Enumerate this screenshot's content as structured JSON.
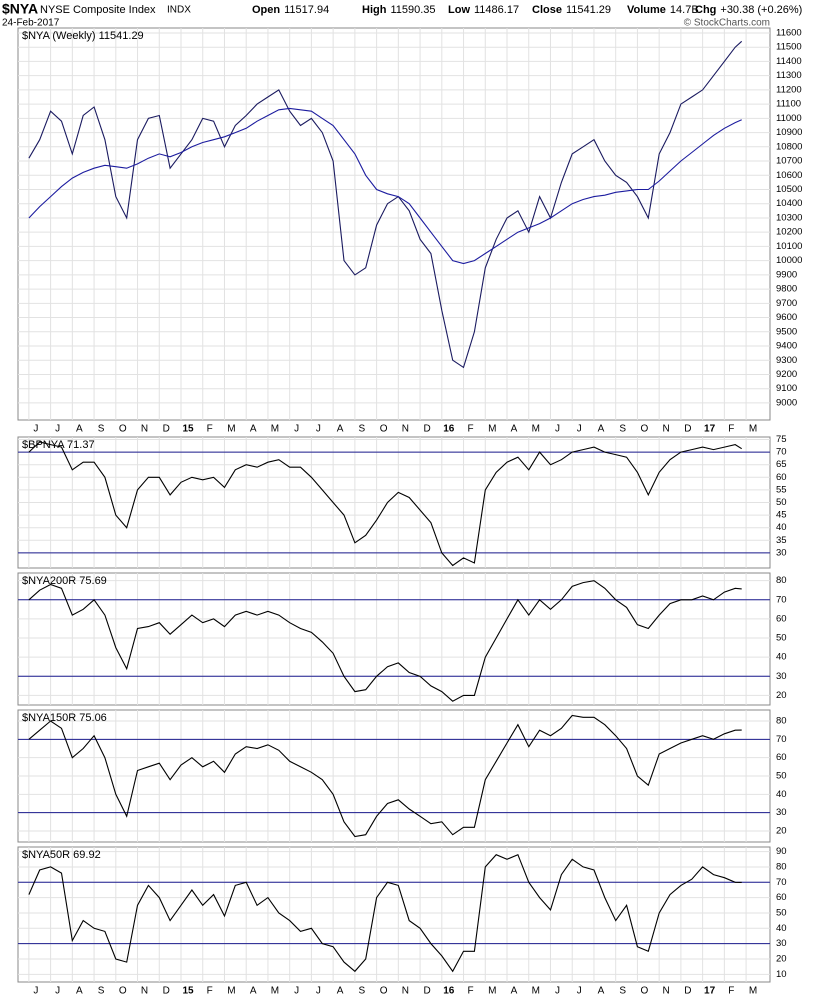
{
  "header": {
    "symbol": "$NYA",
    "name": "NYSE Composite Index",
    "exchange": "INDX",
    "date": "24-Feb-2017",
    "stats": [
      {
        "label": "Open",
        "value": "11517.94"
      },
      {
        "label": "High",
        "value": "11590.35"
      },
      {
        "label": "Low",
        "value": "11486.17"
      },
      {
        "label": "Close",
        "value": "11541.29"
      },
      {
        "label": "Volume",
        "value": "14.7B"
      },
      {
        "label": "Chg",
        "value": "+30.38 (+0.26%)"
      }
    ],
    "credit": "© StockCharts.com"
  },
  "chart_data": [
    {
      "type": "line",
      "label": "$NYA (Weekly) 11541.29",
      "grid": true,
      "x": [
        0,
        0.5,
        1,
        1.5,
        2,
        2.5,
        3,
        3.5,
        4,
        4.5,
        5,
        5.5,
        6,
        6.5,
        7,
        7.5,
        8,
        8.5,
        9,
        9.5,
        10,
        10.5,
        11,
        11.5,
        12,
        12.5,
        13,
        13.5,
        14,
        14.5,
        15,
        15.5,
        16,
        16.5,
        17,
        17.5,
        18,
        18.5,
        19,
        19.5,
        20,
        20.5,
        21,
        21.5,
        22,
        22.5,
        23,
        23.5,
        24,
        24.5,
        25,
        25.5,
        26,
        26.5,
        27,
        27.5,
        28,
        28.5,
        29,
        29.5,
        30,
        30.5,
        31,
        31.5,
        32,
        32.5,
        32.8
      ],
      "xlim": [
        -0.5,
        34.1
      ],
      "xticks": [
        {
          "value": 0,
          "label": "J"
        },
        {
          "value": 1,
          "label": "J"
        },
        {
          "value": 2,
          "label": "A"
        },
        {
          "value": 3,
          "label": "S"
        },
        {
          "value": 4,
          "label": "O"
        },
        {
          "value": 5,
          "label": "N"
        },
        {
          "value": 6,
          "label": "D"
        },
        {
          "value": 7,
          "label": "15"
        },
        {
          "value": 8,
          "label": "F"
        },
        {
          "value": 9,
          "label": "M"
        },
        {
          "value": 10,
          "label": "A"
        },
        {
          "value": 11,
          "label": "M"
        },
        {
          "value": 12,
          "label": "J"
        },
        {
          "value": 13,
          "label": "J"
        },
        {
          "value": 14,
          "label": "A"
        },
        {
          "value": 15,
          "label": "S"
        },
        {
          "value": 16,
          "label": "O"
        },
        {
          "value": 17,
          "label": "N"
        },
        {
          "value": 18,
          "label": "D"
        },
        {
          "value": 19,
          "label": "16"
        },
        {
          "value": 20,
          "label": "F"
        },
        {
          "value": 21,
          "label": "M"
        },
        {
          "value": 22,
          "label": "A"
        },
        {
          "value": 23,
          "label": "M"
        },
        {
          "value": 24,
          "label": "J"
        },
        {
          "value": 25,
          "label": "J"
        },
        {
          "value": 26,
          "label": "A"
        },
        {
          "value": 27,
          "label": "S"
        },
        {
          "value": 28,
          "label": "O"
        },
        {
          "value": 29,
          "label": "N"
        },
        {
          "value": 30,
          "label": "D"
        },
        {
          "value": 31,
          "label": "17"
        },
        {
          "value": 32,
          "label": "F"
        },
        {
          "value": 33,
          "label": "M"
        }
      ],
      "ylim": [
        8880,
        11635
      ],
      "yticks": [
        9000,
        9100,
        9200,
        9300,
        9400,
        9500,
        9600,
        9700,
        9800,
        9900,
        10000,
        10100,
        10200,
        10300,
        10400,
        10500,
        10600,
        10700,
        10800,
        10900,
        11000,
        11100,
        11200,
        11300,
        11400,
        11500,
        11600
      ],
      "series": [
        {
          "color": "#1a1a60",
          "values": [
            10720,
            10850,
            11050,
            10980,
            10750,
            11020,
            11080,
            10850,
            10450,
            10300,
            10850,
            11000,
            11020,
            10650,
            10750,
            10850,
            11000,
            10980,
            10800,
            10950,
            11020,
            11100,
            11150,
            11200,
            11050,
            10950,
            11000,
            10900,
            10700,
            10000,
            9900,
            9950,
            10250,
            10400,
            10450,
            10350,
            10150,
            10050,
            9650,
            9300,
            9250,
            9500,
            9950,
            10150,
            10300,
            10350,
            10200,
            10450,
            10300,
            10550,
            10750,
            10800,
            10850,
            10700,
            10600,
            10550,
            10450,
            10300,
            10750,
            10900,
            11100,
            11150,
            11200,
            11300,
            11400,
            11500,
            11541.29
          ]
        },
        {
          "color": "#1c1c9f",
          "values": [
            10300,
            10380,
            10450,
            10520,
            10580,
            10620,
            10650,
            10670,
            10660,
            10650,
            10680,
            10720,
            10750,
            10730,
            10760,
            10800,
            10830,
            10850,
            10870,
            10900,
            10930,
            10980,
            11020,
            11060,
            11070,
            11060,
            11050,
            11000,
            10950,
            10850,
            10750,
            10600,
            10500,
            10470,
            10450,
            10400,
            10300,
            10200,
            10100,
            10000,
            9980,
            10000,
            10050,
            10100,
            10150,
            10200,
            10230,
            10260,
            10300,
            10350,
            10400,
            10430,
            10450,
            10460,
            10480,
            10490,
            10500,
            10500,
            10560,
            10630,
            10700,
            10760,
            10820,
            10880,
            10930,
            10970,
            10990
          ]
        }
      ]
    },
    {
      "type": "line",
      "label": "$BPNYA 71.37",
      "grid": true,
      "x": [
        0,
        0.5,
        1,
        1.5,
        2,
        2.5,
        3,
        3.5,
        4,
        4.5,
        5,
        5.5,
        6,
        6.5,
        7,
        7.5,
        8,
        8.5,
        9,
        9.5,
        10,
        10.5,
        11,
        11.5,
        12,
        12.5,
        13,
        13.5,
        14,
        14.5,
        15,
        15.5,
        16,
        16.5,
        17,
        17.5,
        18,
        18.5,
        19,
        19.5,
        20,
        20.5,
        21,
        21.5,
        22,
        22.5,
        23,
        23.5,
        24,
        24.5,
        25,
        25.5,
        26,
        26.5,
        27,
        27.5,
        28,
        28.5,
        29,
        29.5,
        30,
        30.5,
        31,
        31.5,
        32,
        32.5,
        32.8
      ],
      "xlim": [
        -0.5,
        34.1
      ],
      "ylim": [
        24,
        76
      ],
      "yticks": [
        30,
        35,
        40,
        45,
        50,
        55,
        60,
        65,
        70,
        75
      ],
      "hlines": [
        30,
        70
      ],
      "hline_color": "#1c1c8f",
      "series": [
        {
          "color": "#000000",
          "values": [
            70,
            74,
            73,
            72,
            63,
            66,
            66,
            60,
            45,
            40,
            55,
            60,
            60,
            53,
            58,
            60,
            59,
            60,
            56,
            63,
            65,
            64,
            66,
            67,
            64,
            64,
            60,
            55,
            50,
            45,
            34,
            37,
            43,
            50,
            54,
            52,
            47,
            42,
            30,
            25,
            28,
            26,
            55,
            62,
            66,
            68,
            63,
            70,
            65,
            67,
            70,
            71,
            72,
            70,
            69,
            68,
            62,
            53,
            62,
            67,
            70,
            71,
            72,
            71,
            72,
            73,
            71.37
          ]
        }
      ]
    },
    {
      "type": "line",
      "label": "$NYA200R 75.69",
      "grid": true,
      "x": [
        0,
        0.5,
        1,
        1.5,
        2,
        2.5,
        3,
        3.5,
        4,
        4.5,
        5,
        5.5,
        6,
        6.5,
        7,
        7.5,
        8,
        8.5,
        9,
        9.5,
        10,
        10.5,
        11,
        11.5,
        12,
        12.5,
        13,
        13.5,
        14,
        14.5,
        15,
        15.5,
        16,
        16.5,
        17,
        17.5,
        18,
        18.5,
        19,
        19.5,
        20,
        20.5,
        21,
        21.5,
        22,
        22.5,
        23,
        23.5,
        24,
        24.5,
        25,
        25.5,
        26,
        26.5,
        27,
        27.5,
        28,
        28.5,
        29,
        29.5,
        30,
        30.5,
        31,
        31.5,
        32,
        32.5,
        32.8
      ],
      "xlim": [
        -0.5,
        34.1
      ],
      "ylim": [
        15,
        84
      ],
      "yticks": [
        20,
        30,
        40,
        50,
        60,
        70,
        80
      ],
      "hlines": [
        30,
        70
      ],
      "hline_color": "#1c1c8f",
      "series": [
        {
          "color": "#000000",
          "values": [
            70,
            75,
            78,
            76,
            62,
            65,
            70,
            62,
            45,
            34,
            55,
            56,
            58,
            52,
            57,
            62,
            58,
            60,
            56,
            62,
            64,
            62,
            64,
            62,
            58,
            55,
            53,
            48,
            42,
            30,
            22,
            23,
            30,
            35,
            37,
            32,
            30,
            25,
            22,
            17,
            20,
            20,
            40,
            50,
            60,
            70,
            62,
            70,
            65,
            70,
            77,
            79,
            80,
            76,
            70,
            66,
            57,
            55,
            62,
            68,
            70,
            70,
            72,
            70,
            74,
            76,
            75.69
          ]
        }
      ]
    },
    {
      "type": "line",
      "label": "$NYA150R 75.06",
      "grid": true,
      "x": [
        0,
        0.5,
        1,
        1.5,
        2,
        2.5,
        3,
        3.5,
        4,
        4.5,
        5,
        5.5,
        6,
        6.5,
        7,
        7.5,
        8,
        8.5,
        9,
        9.5,
        10,
        10.5,
        11,
        11.5,
        12,
        12.5,
        13,
        13.5,
        14,
        14.5,
        15,
        15.5,
        16,
        16.5,
        17,
        17.5,
        18,
        18.5,
        19,
        19.5,
        20,
        20.5,
        21,
        21.5,
        22,
        22.5,
        23,
        23.5,
        24,
        24.5,
        25,
        25.5,
        26,
        26.5,
        27,
        27.5,
        28,
        28.5,
        29,
        29.5,
        30,
        30.5,
        31,
        31.5,
        32,
        32.5,
        32.8
      ],
      "xlim": [
        -0.5,
        34.1
      ],
      "ylim": [
        14,
        86
      ],
      "yticks": [
        20,
        30,
        40,
        50,
        60,
        70,
        80
      ],
      "hlines": [
        30,
        70
      ],
      "hline_color": "#1c1c8f",
      "series": [
        {
          "color": "#000000",
          "values": [
            70,
            75,
            80,
            76,
            60,
            65,
            72,
            60,
            40,
            28,
            53,
            55,
            57,
            48,
            56,
            60,
            55,
            58,
            52,
            62,
            66,
            65,
            67,
            64,
            58,
            55,
            52,
            48,
            40,
            25,
            17,
            18,
            28,
            35,
            37,
            32,
            28,
            24,
            25,
            18,
            22,
            22,
            48,
            58,
            68,
            78,
            66,
            75,
            72,
            76,
            83,
            82,
            82,
            78,
            72,
            65,
            50,
            45,
            62,
            65,
            68,
            70,
            72,
            70,
            73,
            75,
            75.06
          ]
        }
      ]
    },
    {
      "type": "line",
      "label": "$NYA50R 69.92",
      "grid": true,
      "x": [
        0,
        0.5,
        1,
        1.5,
        2,
        2.5,
        3,
        3.5,
        4,
        4.5,
        5,
        5.5,
        6,
        6.5,
        7,
        7.5,
        8,
        8.5,
        9,
        9.5,
        10,
        10.5,
        11,
        11.5,
        12,
        12.5,
        13,
        13.5,
        14,
        14.5,
        15,
        15.5,
        16,
        16.5,
        17,
        17.5,
        18,
        18.5,
        19,
        19.5,
        20,
        20.5,
        21,
        21.5,
        22,
        22.5,
        23,
        23.5,
        24,
        24.5,
        25,
        25.5,
        26,
        26.5,
        27,
        27.5,
        28,
        28.5,
        29,
        29.5,
        30,
        30.5,
        31,
        31.5,
        32,
        32.5,
        32.8
      ],
      "xlim": [
        -0.5,
        34.1
      ],
      "xticks": [
        {
          "value": 0,
          "label": "J"
        },
        {
          "value": 1,
          "label": "J"
        },
        {
          "value": 2,
          "label": "A"
        },
        {
          "value": 3,
          "label": "S"
        },
        {
          "value": 4,
          "label": "O"
        },
        {
          "value": 5,
          "label": "N"
        },
        {
          "value": 6,
          "label": "D"
        },
        {
          "value": 7,
          "label": "15"
        },
        {
          "value": 8,
          "label": "F"
        },
        {
          "value": 9,
          "label": "M"
        },
        {
          "value": 10,
          "label": "A"
        },
        {
          "value": 11,
          "label": "M"
        },
        {
          "value": 12,
          "label": "J"
        },
        {
          "value": 13,
          "label": "J"
        },
        {
          "value": 14,
          "label": "A"
        },
        {
          "value": 15,
          "label": "S"
        },
        {
          "value": 16,
          "label": "O"
        },
        {
          "value": 17,
          "label": "N"
        },
        {
          "value": 18,
          "label": "D"
        },
        {
          "value": 19,
          "label": "16"
        },
        {
          "value": 20,
          "label": "F"
        },
        {
          "value": 21,
          "label": "M"
        },
        {
          "value": 22,
          "label": "A"
        },
        {
          "value": 23,
          "label": "M"
        },
        {
          "value": 24,
          "label": "J"
        },
        {
          "value": 25,
          "label": "J"
        },
        {
          "value": 26,
          "label": "A"
        },
        {
          "value": 27,
          "label": "S"
        },
        {
          "value": 28,
          "label": "O"
        },
        {
          "value": 29,
          "label": "N"
        },
        {
          "value": 30,
          "label": "D"
        },
        {
          "value": 31,
          "label": "17"
        },
        {
          "value": 32,
          "label": "F"
        },
        {
          "value": 33,
          "label": "M"
        }
      ],
      "ylim": [
        5,
        93
      ],
      "yticks": [
        10,
        20,
        30,
        40,
        50,
        60,
        70,
        80,
        90
      ],
      "hlines": [
        30,
        70
      ],
      "hline_color": "#1c1c8f",
      "series": [
        {
          "color": "#000000",
          "values": [
            62,
            78,
            80,
            76,
            32,
            45,
            40,
            38,
            20,
            18,
            55,
            68,
            60,
            45,
            55,
            65,
            55,
            62,
            48,
            68,
            70,
            55,
            60,
            50,
            45,
            38,
            40,
            30,
            28,
            18,
            12,
            20,
            60,
            70,
            68,
            45,
            40,
            30,
            22,
            12,
            25,
            25,
            80,
            88,
            85,
            88,
            70,
            60,
            52,
            75,
            85,
            80,
            78,
            60,
            45,
            55,
            28,
            25,
            50,
            62,
            68,
            72,
            80,
            75,
            73,
            70,
            69.92
          ]
        }
      ]
    }
  ]
}
